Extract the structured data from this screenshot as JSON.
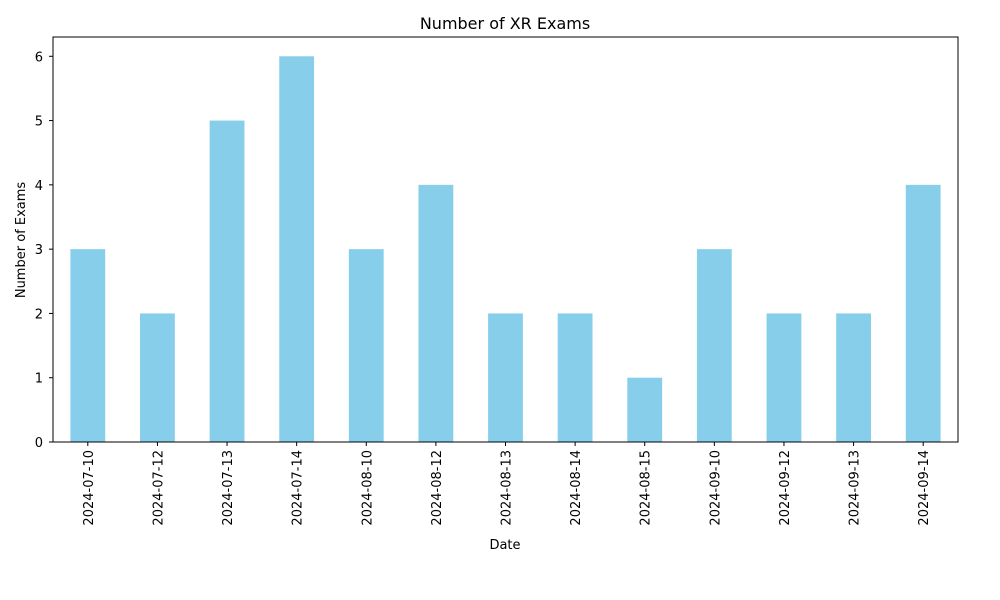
{
  "chart_data": {
    "type": "bar",
    "title": "Number of XR Exams",
    "xlabel": "Date",
    "ylabel": "Number of Exams",
    "categories": [
      "2024-07-10",
      "2024-07-12",
      "2024-07-13",
      "2024-07-14",
      "2024-08-10",
      "2024-08-12",
      "2024-08-13",
      "2024-08-14",
      "2024-08-15",
      "2024-09-10",
      "2024-09-12",
      "2024-09-13",
      "2024-09-14"
    ],
    "values": [
      3,
      2,
      5,
      6,
      3,
      4,
      2,
      2,
      1,
      3,
      2,
      2,
      4
    ],
    "ylim": [
      0,
      6.3
    ],
    "yticks": [
      0,
      1,
      2,
      3,
      4,
      5,
      6
    ],
    "bar_color": "#87ceeb",
    "grid": false,
    "legend": false
  }
}
